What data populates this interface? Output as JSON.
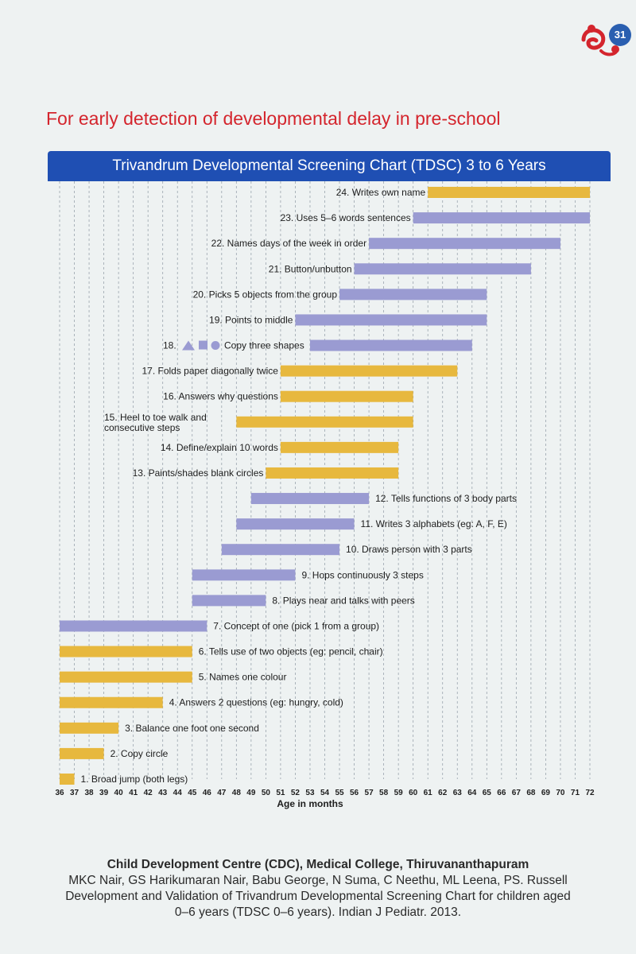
{
  "page": {
    "number": "31",
    "subtitle": "For early detection of developmental delay in pre-school",
    "chart_title": "Trivandrum Developmental Screening Chart (TDSC) 3 to 6 Years",
    "logo_icon": "duck-icon"
  },
  "colors": {
    "yellow": "#e7b83e",
    "purple": "#9a9bd2",
    "accent_blue": "#1f4fb3",
    "accent_red": "#d4252d"
  },
  "chart_data": {
    "type": "bar",
    "orientation": "horizontal-range",
    "title": "Trivandrum Developmental Screening Chart (TDSC) 3 to 6 Years",
    "xlabel": "Age in months",
    "ylabel": "",
    "xlim": [
      36,
      72
    ],
    "xticks": [
      36,
      37,
      38,
      39,
      40,
      41,
      42,
      43,
      44,
      45,
      46,
      47,
      48,
      49,
      50,
      51,
      52,
      53,
      54,
      55,
      56,
      57,
      58,
      59,
      60,
      61,
      62,
      63,
      64,
      65,
      66,
      67,
      68,
      69,
      70,
      71,
      72
    ],
    "grid": true,
    "items": [
      {
        "label": "24. Writes own name",
        "start": 61,
        "end": 72,
        "color": "yellow",
        "label_side": "left"
      },
      {
        "label": "23. Uses 5–6 words sentences",
        "start": 60,
        "end": 72,
        "color": "purple",
        "label_side": "left"
      },
      {
        "label": "22. Names days of the week in order",
        "start": 57,
        "end": 70,
        "color": "purple",
        "label_side": "left"
      },
      {
        "label": "21. Button/unbutton",
        "start": 56,
        "end": 68,
        "color": "purple",
        "label_side": "left"
      },
      {
        "label": "20. Picks 5 objects from the group",
        "start": 55,
        "end": 65,
        "color": "purple",
        "label_side": "left"
      },
      {
        "label": "19. Points to middle",
        "start": 52,
        "end": 65,
        "color": "purple",
        "label_side": "left"
      },
      {
        "label": "18.",
        "label2": "Copy three shapes",
        "start": 53,
        "end": 64,
        "color": "purple",
        "label_side": "left",
        "shapes": true
      },
      {
        "label": "17. Folds paper diagonally twice",
        "start": 51,
        "end": 63,
        "color": "yellow",
        "label_side": "left"
      },
      {
        "label": "16. Answers why questions",
        "start": 51,
        "end": 60,
        "color": "yellow",
        "label_side": "left"
      },
      {
        "label": "15. Heel to toe walk and",
        "label2": "consecutive steps",
        "start": 48,
        "end": 60,
        "color": "yellow",
        "label_side": "left"
      },
      {
        "label": "14. Define/explain 10 words",
        "start": 51,
        "end": 59,
        "color": "yellow",
        "label_side": "left"
      },
      {
        "label": "13. Paints/shades blank circles",
        "start": 50,
        "end": 59,
        "color": "yellow",
        "label_side": "left"
      },
      {
        "label": "12. Tells functions of 3 body parts",
        "start": 49,
        "end": 57,
        "color": "purple",
        "label_side": "right"
      },
      {
        "label": "11. Writes 3 alphabets (eg: A, F, E)",
        "start": 48,
        "end": 56,
        "color": "purple",
        "label_side": "right"
      },
      {
        "label": "10. Draws person with 3 parts",
        "start": 47,
        "end": 55,
        "color": "purple",
        "label_side": "right"
      },
      {
        "label": "9. Hops continuously 3 steps",
        "start": 45,
        "end": 52,
        "color": "purple",
        "label_side": "right"
      },
      {
        "label": "8. Plays near and talks with peers",
        "start": 45,
        "end": 50,
        "color": "purple",
        "label_side": "right"
      },
      {
        "label": "7. Concept of one (pick 1 from a group)",
        "start": 36,
        "end": 46,
        "color": "purple",
        "label_side": "right"
      },
      {
        "label": "6. Tells use of two objects (eg: pencil, chair)",
        "start": 36,
        "end": 45,
        "color": "yellow",
        "label_side": "right"
      },
      {
        "label": "5. Names one colour",
        "start": 36,
        "end": 45,
        "color": "yellow",
        "label_side": "right"
      },
      {
        "label": "4. Answers 2 questions (eg: hungry, cold)",
        "start": 36,
        "end": 43,
        "color": "yellow",
        "label_side": "right"
      },
      {
        "label": "3. Balance one foot one second",
        "start": 36,
        "end": 40,
        "color": "yellow",
        "label_side": "right"
      },
      {
        "label": "2. Copy circle",
        "start": 36,
        "end": 39,
        "color": "yellow",
        "label_side": "right"
      },
      {
        "label": "1. Broad jump (both legs)",
        "start": 36,
        "end": 37,
        "color": "yellow",
        "label_side": "right"
      }
    ]
  },
  "footer": {
    "org": "Child Development Centre (CDC), Medical College, Thiruvananthapuram",
    "authors": "MKC Nair, GS Harikumaran Nair, Babu George, N Suma, C Neethu, ML Leena, PS. Russell",
    "citation_line1": "Development and Validation of Trivandrum Developmental Screening Chart for children aged",
    "citation_line2": "0–6 years (TDSC 0–6 years). Indian J Pediatr. 2013."
  }
}
